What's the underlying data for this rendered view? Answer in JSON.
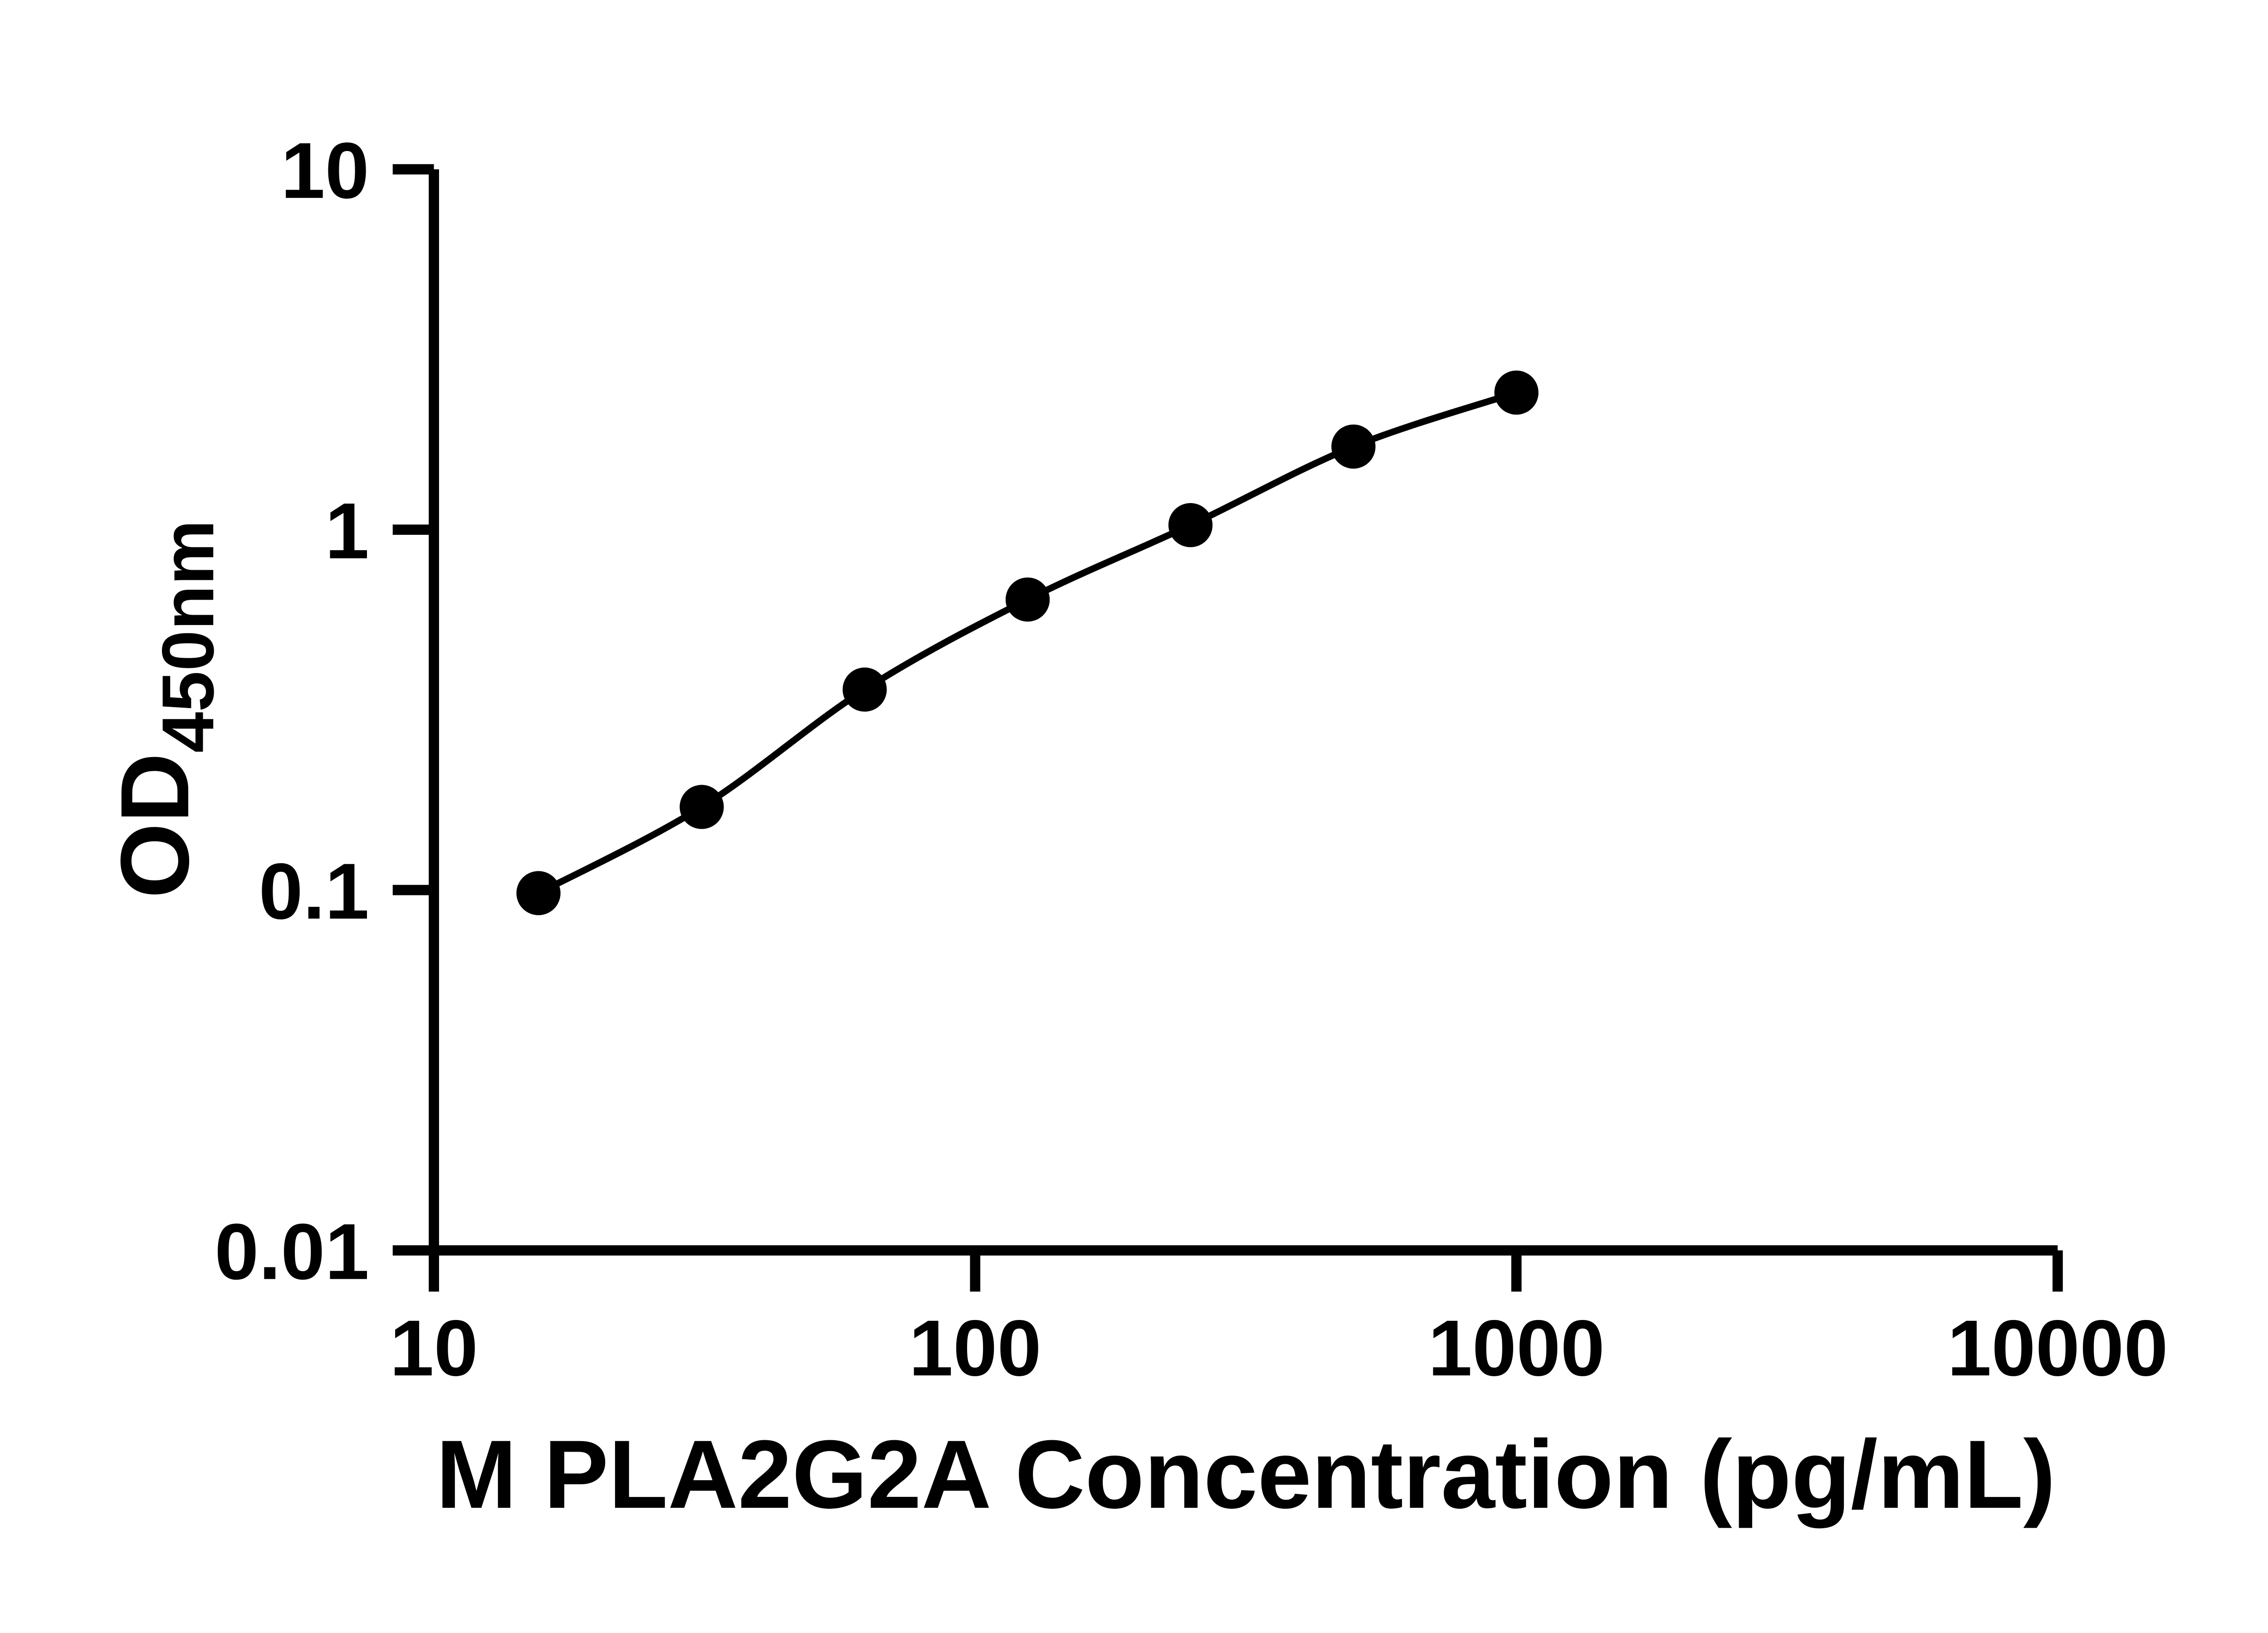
{
  "chart_data": {
    "type": "scatter",
    "title": "",
    "xlabel": "M PLA2G2A Concentration (pg/mL)",
    "ylabel_main": "OD",
    "ylabel_sub": "450nm",
    "x_scale": "log10",
    "y_scale": "log10",
    "xlim": [
      10,
      10000
    ],
    "ylim": [
      0.01,
      10
    ],
    "x_ticks": [
      10,
      100,
      1000,
      10000
    ],
    "x_tick_labels": [
      "10",
      "100",
      "1000",
      "10000"
    ],
    "y_ticks": [
      0.01,
      0.1,
      1,
      10
    ],
    "y_tick_labels": [
      "0.01",
      "0.1",
      "1",
      "10"
    ],
    "grid": false,
    "legend": "none",
    "series": [
      {
        "x": [
          15.6,
          31.25,
          62.5,
          125,
          250,
          500,
          1000
        ],
        "y": [
          0.098,
          0.17,
          0.36,
          0.64,
          1.03,
          1.7,
          2.4
        ],
        "marker": "filled-circle",
        "line": "smooth-curve"
      }
    ],
    "colors": {
      "axis": "#000000",
      "marker": "#000000",
      "curve": "#000000",
      "text": "#000000",
      "background": "#ffffff"
    }
  }
}
